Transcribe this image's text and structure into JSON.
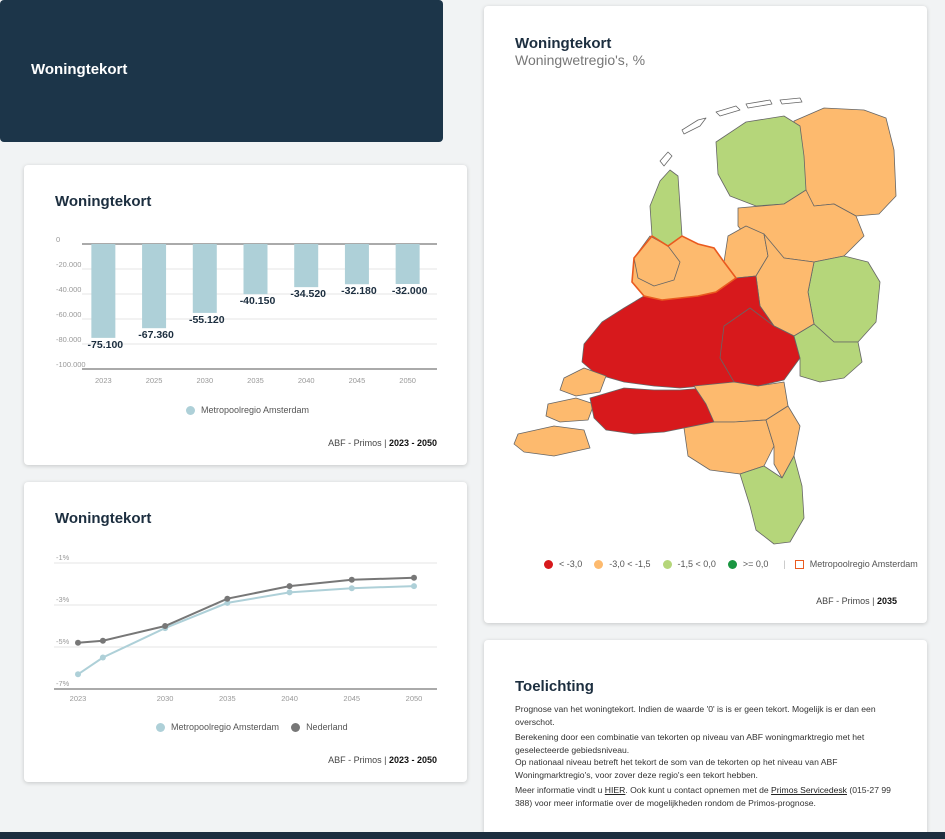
{
  "header": {
    "title": "Woningtekort"
  },
  "bar_card": {
    "title": "Woningtekort",
    "legend": "Metropoolregio Amsterdam",
    "source_prefix": "ABF - Primos | ",
    "source_range": "2023 - 2050"
  },
  "line_card": {
    "title": "Woningtekort",
    "legend_1": "Metropoolregio Amsterdam",
    "legend_2": "Nederland",
    "source_prefix": "ABF - Primos | ",
    "source_range": "2023 - 2050"
  },
  "map_card": {
    "title": "Woningtekort",
    "subtitle": "Woningwetregio's, %",
    "legend": [
      {
        "label": "< -3,0",
        "color": "#d7191c"
      },
      {
        "label": "-3,0 < -1,5",
        "color": "#fdba6e"
      },
      {
        "label": "-1,5 < 0,0",
        "color": "#b5d67a"
      },
      {
        "label": ">= 0,0",
        "color": "#1a9641"
      }
    ],
    "legend_outline": "Metropoolregio Amsterdam",
    "source_prefix": "ABF - Primos | ",
    "source_year": "2035"
  },
  "explanation": {
    "title": "Toelichting",
    "p1": "Prognose van het woningtekort. Indien de waarde '0' is is er geen tekort. Mogelijk is er dan een overschot.",
    "p2": "Berekening door een combinatie van tekorten op niveau van ABF woningmarktregio met het geselecteerde gebiedsniveau.",
    "p3": "Op nationaal niveau betreft het tekort de som van de tekorten op het niveau van ABF Woningmarktregio's, voor zover deze regio's een tekort hebben.",
    "p4_a": "Meer informatie vindt u ",
    "p4_link1": "HIER",
    "p4_b": ". Ook kunt u contact opnemen met de ",
    "p4_link2": "Primos Servicedesk",
    "p4_c": " (015-27 99 388) voor meer informatie over de mogelijkheden rondom de Primos-prognose."
  },
  "colors": {
    "bar": "#aed0d8",
    "mra_line": "#aed0d8",
    "nl_line": "#777777",
    "header_bg": "#1c3549"
  },
  "chart_data": [
    {
      "type": "bar",
      "categories": [
        "2023",
        "2025",
        "2030",
        "2035",
        "2040",
        "2045",
        "2050"
      ],
      "series": [
        {
          "name": "Metropoolregio Amsterdam",
          "values": [
            -75100,
            -67360,
            -55120,
            -40150,
            -34520,
            -32180,
            -32000
          ]
        }
      ],
      "data_labels": [
        "-75.100",
        "-67.360",
        "-55.120",
        "-40.150",
        "-34.520",
        "-32.180",
        "-32.000"
      ],
      "yticks": [
        "0",
        "-20.000",
        "-40.000",
        "-60.000",
        "-80.000",
        "-100.000"
      ],
      "ylim": [
        -100000,
        0
      ]
    },
    {
      "type": "line",
      "x": [
        2023,
        2025,
        2030,
        2035,
        2040,
        2045,
        2050
      ],
      "xticks": [
        "2023",
        "2030",
        "2035",
        "2040",
        "2045",
        "2050"
      ],
      "yticks": [
        "-1%",
        "-3%",
        "-5%",
        "-7%"
      ],
      "ylim": [
        -7,
        -1
      ],
      "series": [
        {
          "name": "Metropoolregio Amsterdam",
          "values": [
            -6.3,
            -5.5,
            -4.1,
            -2.9,
            -2.4,
            -2.2,
            -2.1
          ]
        },
        {
          "name": "Nederland",
          "values": [
            -4.8,
            -4.7,
            -4.0,
            -2.7,
            -2.1,
            -1.8,
            -1.7
          ]
        }
      ]
    }
  ]
}
